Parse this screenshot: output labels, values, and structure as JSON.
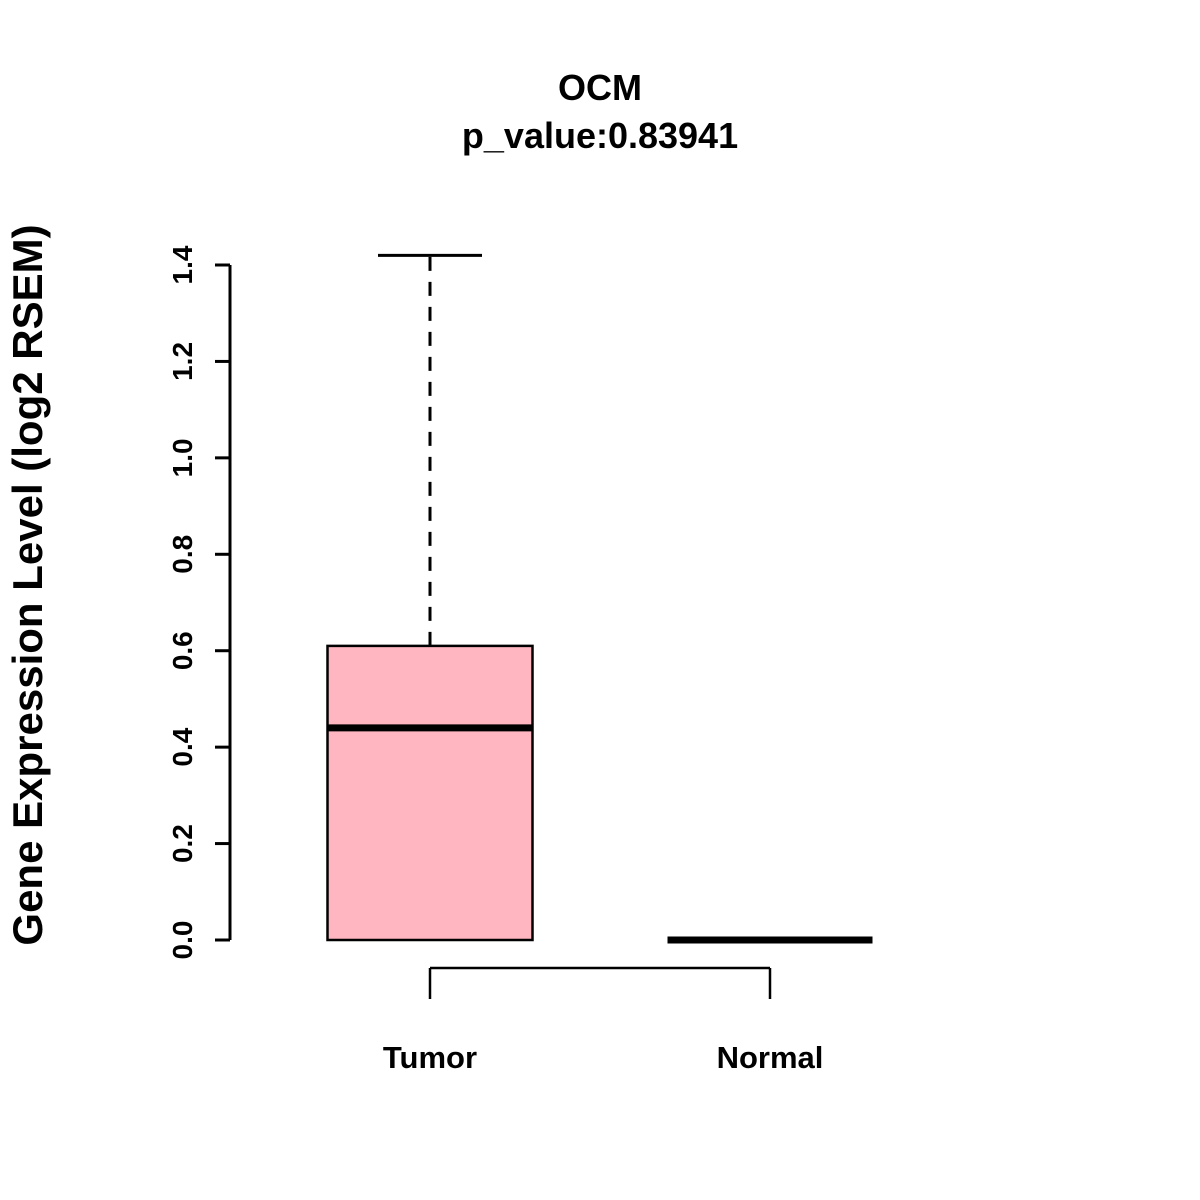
{
  "chart_data": {
    "type": "boxplot",
    "title": "OCM",
    "subtitle": "p_value:0.83941",
    "ylabel": "Gene Expression Level (log2 RSEM)",
    "categories": [
      "Tumor",
      "Normal"
    ],
    "yticks": [
      0.0,
      0.2,
      0.4,
      0.6,
      0.8,
      1.0,
      1.2,
      1.4
    ],
    "ylim": [
      0.0,
      1.42
    ],
    "grid": false,
    "legend": "none",
    "box_fill": "#FFB6C1",
    "line_color": "#000000",
    "series": [
      {
        "name": "Tumor",
        "min": 0.0,
        "q1": 0.0,
        "median": 0.44,
        "q3": 0.61,
        "max": 1.42
      },
      {
        "name": "Normal",
        "min": 0.0,
        "q1": 0.0,
        "median": 0.0,
        "q3": 0.0,
        "max": 0.0
      }
    ]
  }
}
